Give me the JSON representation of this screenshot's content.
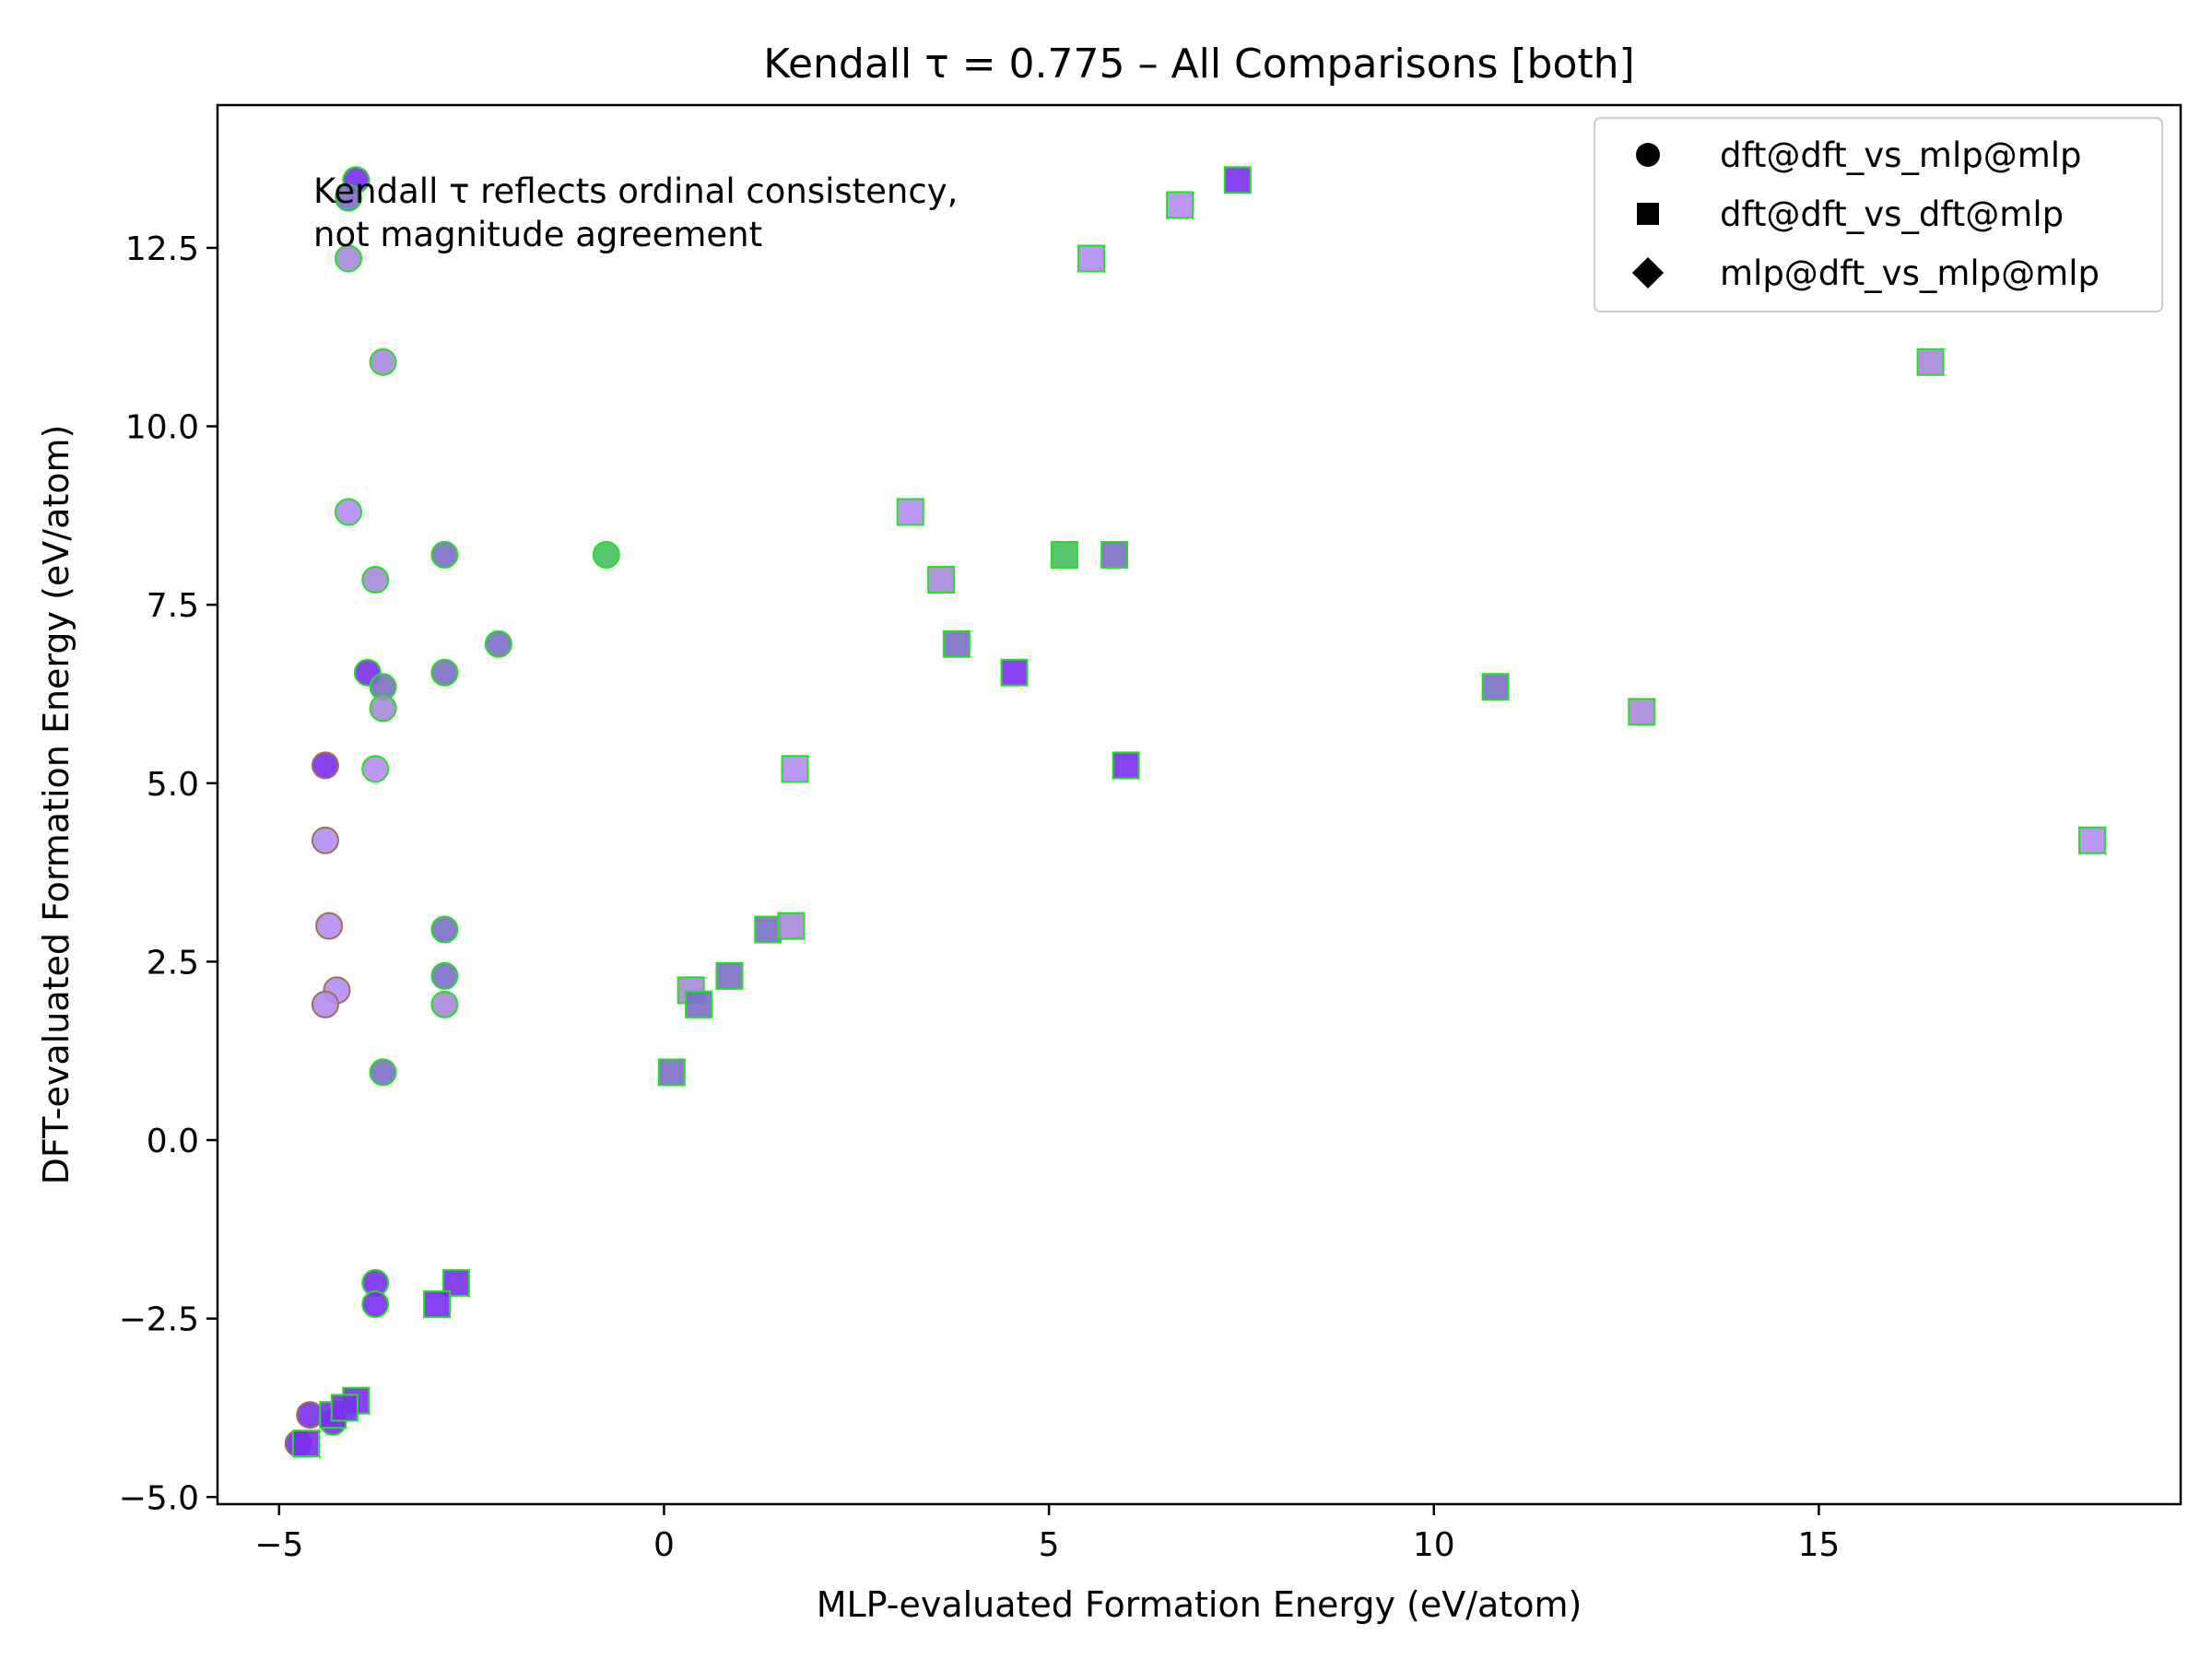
{
  "chart_data": {
    "type": "scatter",
    "title": "Kendall τ = 0.775 – All Comparisons [both]",
    "xlabel": "MLP-evaluated Formation Energy (eV/atom)",
    "ylabel": "DFT-evaluated Formation Energy (eV/atom)",
    "xlim": [
      -5.8,
      19.7
    ],
    "ylim": [
      -5.1,
      14.5
    ],
    "xticks": [
      -5,
      0,
      5,
      10,
      15
    ],
    "xtick_labels": [
      "−5",
      "0",
      "5",
      "10",
      "15"
    ],
    "yticks": [
      -5.0,
      -2.5,
      0.0,
      2.5,
      5.0,
      7.5,
      10.0,
      12.5
    ],
    "ytick_labels": [
      "−5.0",
      "−2.5",
      "0.0",
      "2.5",
      "5.0",
      "7.5",
      "10.0",
      "12.5"
    ],
    "grid": false,
    "legend_position": "top-right",
    "annotation": [
      "Kendall τ reflects ordinal consistency,",
      "not magnitude agreement"
    ],
    "colors": {
      "violet": "#7b2ff0",
      "lavender": "#b48df5",
      "slate": "#7a6fc4",
      "green": "#45c05f",
      "mauve": "#a98ad8",
      "edge_green": "#22e022",
      "edge_brown": "#a07050"
    },
    "series": [
      {
        "name": "dft@dft_vs_mlp@mlp",
        "marker": "circle",
        "points": [
          {
            "x": -4.0,
            "y": 13.45,
            "c": "violet"
          },
          {
            "x": -4.1,
            "y": 13.2,
            "c": "slate"
          },
          {
            "x": -4.1,
            "y": 12.35,
            "c": "mauve"
          },
          {
            "x": -3.65,
            "y": 10.9,
            "c": "mauve"
          },
          {
            "x": -4.1,
            "y": 8.8,
            "c": "lavender"
          },
          {
            "x": -2.85,
            "y": 8.2,
            "c": "slate"
          },
          {
            "x": -0.75,
            "y": 8.2,
            "c": "green"
          },
          {
            "x": -3.75,
            "y": 7.85,
            "c": "mauve"
          },
          {
            "x": -2.15,
            "y": 6.95,
            "c": "slate"
          },
          {
            "x": -3.85,
            "y": 6.55,
            "c": "violet"
          },
          {
            "x": -2.85,
            "y": 6.55,
            "c": "slate"
          },
          {
            "x": -3.65,
            "y": 6.35,
            "c": "slate"
          },
          {
            "x": -3.65,
            "y": 6.05,
            "c": "mauve"
          },
          {
            "x": -4.4,
            "y": 5.25,
            "c": "violet",
            "edge": "edge_brown"
          },
          {
            "x": -3.75,
            "y": 5.2,
            "c": "lavender"
          },
          {
            "x": -4.4,
            "y": 4.2,
            "c": "lavender",
            "edge": "edge_brown"
          },
          {
            "x": -4.35,
            "y": 3.0,
            "c": "lavender",
            "edge": "edge_brown"
          },
          {
            "x": -2.85,
            "y": 2.95,
            "c": "slate"
          },
          {
            "x": -2.85,
            "y": 2.3,
            "c": "slate"
          },
          {
            "x": -4.25,
            "y": 2.1,
            "c": "lavender",
            "edge": "edge_brown"
          },
          {
            "x": -4.4,
            "y": 1.9,
            "c": "lavender",
            "edge": "edge_brown"
          },
          {
            "x": -2.85,
            "y": 1.9,
            "c": "mauve"
          },
          {
            "x": -3.65,
            "y": 0.95,
            "c": "slate"
          },
          {
            "x": -3.75,
            "y": -2.0,
            "c": "violet"
          },
          {
            "x": -3.75,
            "y": -2.3,
            "c": "violet"
          },
          {
            "x": -4.6,
            "y": -3.85,
            "c": "violet",
            "edge": "edge_brown"
          },
          {
            "x": -4.75,
            "y": -4.25,
            "c": "violet",
            "edge": "edge_brown"
          },
          {
            "x": -4.3,
            "y": -3.95,
            "c": "violet"
          }
        ]
      },
      {
        "name": "dft@dft_vs_dft@mlp",
        "marker": "square",
        "points": [
          {
            "x": 7.45,
            "y": 13.45,
            "c": "violet"
          },
          {
            "x": 6.7,
            "y": 13.1,
            "c": "lavender"
          },
          {
            "x": 5.55,
            "y": 12.35,
            "c": "lavender"
          },
          {
            "x": 16.45,
            "y": 10.9,
            "c": "mauve"
          },
          {
            "x": 3.2,
            "y": 8.8,
            "c": "lavender"
          },
          {
            "x": 5.2,
            "y": 8.2,
            "c": "green"
          },
          {
            "x": 5.85,
            "y": 8.2,
            "c": "slate"
          },
          {
            "x": 3.6,
            "y": 7.85,
            "c": "mauve"
          },
          {
            "x": 3.8,
            "y": 6.95,
            "c": "slate"
          },
          {
            "x": 4.55,
            "y": 6.55,
            "c": "violet"
          },
          {
            "x": 10.8,
            "y": 6.35,
            "c": "slate"
          },
          {
            "x": 12.7,
            "y": 6.0,
            "c": "mauve"
          },
          {
            "x": 6.0,
            "y": 5.25,
            "c": "violet"
          },
          {
            "x": 1.7,
            "y": 5.2,
            "c": "lavender"
          },
          {
            "x": 18.55,
            "y": 4.2,
            "c": "lavender"
          },
          {
            "x": 1.35,
            "y": 2.95,
            "c": "slate"
          },
          {
            "x": 1.65,
            "y": 3.0,
            "c": "mauve"
          },
          {
            "x": 0.85,
            "y": 2.3,
            "c": "slate"
          },
          {
            "x": 0.35,
            "y": 2.1,
            "c": "mauve"
          },
          {
            "x": 0.45,
            "y": 1.9,
            "c": "slate"
          },
          {
            "x": 0.1,
            "y": 0.95,
            "c": "slate"
          },
          {
            "x": -2.7,
            "y": -2.0,
            "c": "violet"
          },
          {
            "x": -2.95,
            "y": -2.3,
            "c": "violet"
          },
          {
            "x": -4.0,
            "y": -3.65,
            "c": "violet"
          },
          {
            "x": -4.3,
            "y": -3.85,
            "c": "violet"
          },
          {
            "x": -4.65,
            "y": -4.25,
            "c": "violet"
          },
          {
            "x": -4.15,
            "y": -3.75,
            "c": "violet"
          }
        ]
      },
      {
        "name": "mlp@dft_vs_mlp@mlp",
        "marker": "diamond",
        "points": []
      }
    ]
  }
}
